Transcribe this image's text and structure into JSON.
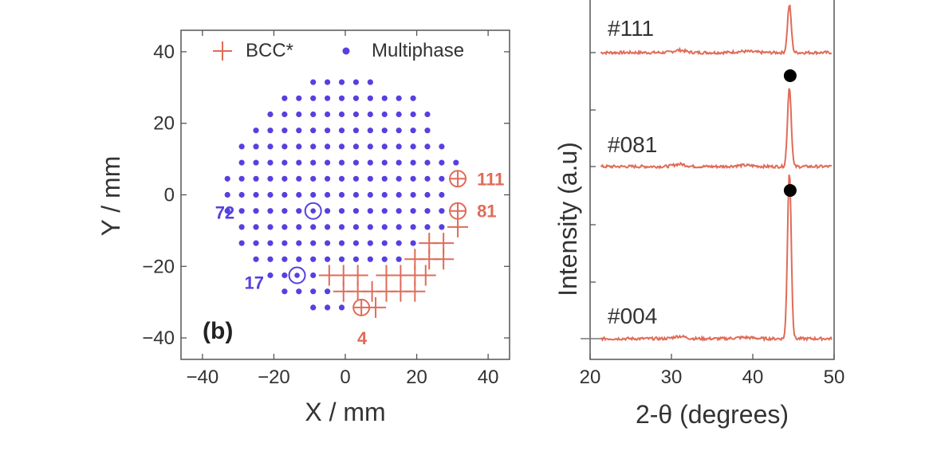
{
  "colors": {
    "bcc": "#e06b58",
    "multiphase": "#5540e0",
    "axis": "#333333",
    "wafer": "#555555"
  },
  "chart_data": [
    {
      "type": "scatter",
      "panel_label": "(b)",
      "xlabel": "X / mm",
      "ylabel": "Y / mm",
      "xlim": [
        -46,
        46
      ],
      "ylim": [
        -46,
        46
      ],
      "xticks": [
        -40,
        -20,
        0,
        20,
        40
      ],
      "yticks": [
        -40,
        -20,
        0,
        20,
        40
      ],
      "xtick_labels": [
        "−40",
        "−20",
        "0",
        "20",
        "40"
      ],
      "ytick_labels": [
        "−40",
        "−20",
        "0",
        "20",
        "40"
      ],
      "legend_position": "top",
      "wafer": {
        "shape": "circle with flat",
        "center": [
          0,
          0
        ],
        "radius": 35,
        "flat_y": -35
      },
      "series": [
        {
          "name": "BCC*",
          "marker": "plus",
          "points": [
            [
              31.5,
              -9
            ],
            [
              23.5,
              -13.5
            ],
            [
              27.5,
              -13.5
            ],
            [
              19.5,
              -18
            ],
            [
              23.5,
              -18
            ],
            [
              27.5,
              -18
            ],
            [
              22.5,
              -22.5
            ],
            [
              -4.5,
              -22.5
            ],
            [
              -0.5,
              -22.5
            ],
            [
              3.5,
              -22.5
            ],
            [
              11.5,
              -22.5
            ],
            [
              15.5,
              -22.5
            ],
            [
              19.5,
              -22.5
            ],
            [
              -0.5,
              -27
            ],
            [
              3.5,
              -27
            ],
            [
              7.5,
              -27
            ],
            [
              11.5,
              -27
            ],
            [
              15.5,
              -27
            ],
            [
              19.5,
              -27
            ],
            [
              8.5,
              -31.5
            ]
          ]
        },
        {
          "name": "Multiphase",
          "marker": "dot",
          "rows": [
            {
              "y": 31.5,
              "x": [
                -9,
                -5,
                -1,
                3,
                7
              ]
            },
            {
              "y": 27,
              "x": [
                -17,
                -13,
                -9,
                -5,
                -1,
                3,
                7,
                11,
                15,
                19
              ]
            },
            {
              "y": 22.5,
              "x": [
                -21,
                -17,
                -13,
                -9,
                -5,
                -1,
                3,
                7,
                11,
                15,
                19,
                23
              ]
            },
            {
              "y": 18,
              "x": [
                -25,
                -21,
                -17,
                -13,
                -9,
                -5,
                -1,
                3,
                7,
                11,
                15,
                19,
                23
              ]
            },
            {
              "y": 13.5,
              "x": [
                -29,
                -25,
                -21,
                -17,
                -13,
                -9,
                -5,
                -1,
                3,
                7,
                11,
                15,
                19,
                23,
                27
              ]
            },
            {
              "y": 9,
              "x": [
                -29,
                -25,
                -21,
                -17,
                -13,
                -9,
                -5,
                -1,
                3,
                7,
                11,
                15,
                19,
                23,
                27,
                31
              ]
            },
            {
              "y": 4.5,
              "x": [
                -33,
                -29,
                -25,
                -21,
                -17,
                -13,
                -9,
                -5,
                -1,
                3,
                7,
                11,
                15,
                19,
                23,
                27
              ]
            },
            {
              "y": 0,
              "x": [
                -33,
                -29,
                -25,
                -21,
                -17,
                -13,
                -9,
                -5,
                -1,
                3,
                7,
                11,
                15,
                19,
                23,
                27
              ]
            },
            {
              "y": -4.5,
              "x": [
                -33,
                -29,
                -25,
                -21,
                -17,
                -13,
                -9,
                -5,
                -1,
                3,
                7,
                11,
                15,
                19,
                23,
                27
              ]
            },
            {
              "y": -9,
              "x": [
                -29,
                -25,
                -21,
                -17,
                -13,
                -9,
                -5,
                -1,
                3,
                7,
                11,
                15,
                19,
                23,
                27
              ]
            },
            {
              "y": -13.5,
              "x": [
                -29,
                -25,
                -21,
                -17,
                -13,
                -9,
                -5,
                -1,
                3,
                7,
                11,
                15,
                19
              ]
            },
            {
              "y": -18,
              "x": [
                -25,
                -21,
                -17,
                -13,
                -9,
                -5,
                -1,
                3,
                7,
                11,
                15
              ]
            },
            {
              "y": -22.5,
              "x": [
                -21,
                -17,
                -13,
                -9
              ]
            },
            {
              "y": -27,
              "x": [
                -17,
                -13,
                -9,
                -5
              ]
            },
            {
              "y": -31.5,
              "x": [
                -9,
                -5,
                -1
              ]
            }
          ]
        }
      ],
      "annotations": [
        {
          "text": "111",
          "x": 31.5,
          "y": 4.5,
          "group": "BCC*"
        },
        {
          "text": "81",
          "x": 31.5,
          "y": -4.5,
          "group": "BCC*"
        },
        {
          "text": "4",
          "x": 4.5,
          "y": -31.5,
          "group": "BCC*"
        },
        {
          "text": "72",
          "x": -9,
          "y": -4.5,
          "group": "Multiphase"
        },
        {
          "text": "17",
          "x": -13.5,
          "y": -22.5,
          "group": "Multiphase"
        }
      ]
    },
    {
      "type": "line",
      "xlabel": "2-θ (degrees)",
      "ylabel": "Intensity (a.u)",
      "xlim": [
        20,
        50
      ],
      "xticks": [
        20,
        30,
        40,
        50
      ],
      "xtick_labels": [
        "20",
        "30",
        "40",
        "50"
      ],
      "series": [
        {
          "name": "#111",
          "peak_x": 44.5,
          "peak_height": 0.6
        },
        {
          "name": "#081",
          "peak_x": 44.5,
          "peak_height": 1.0
        },
        {
          "name": "#004",
          "peak_x": 44.5,
          "peak_height": 2.1
        }
      ],
      "peak_markers": [
        {
          "x": 44.5,
          "marker": "filled-circle"
        },
        {
          "x": 44.5,
          "marker": "filled-circle"
        }
      ]
    }
  ]
}
